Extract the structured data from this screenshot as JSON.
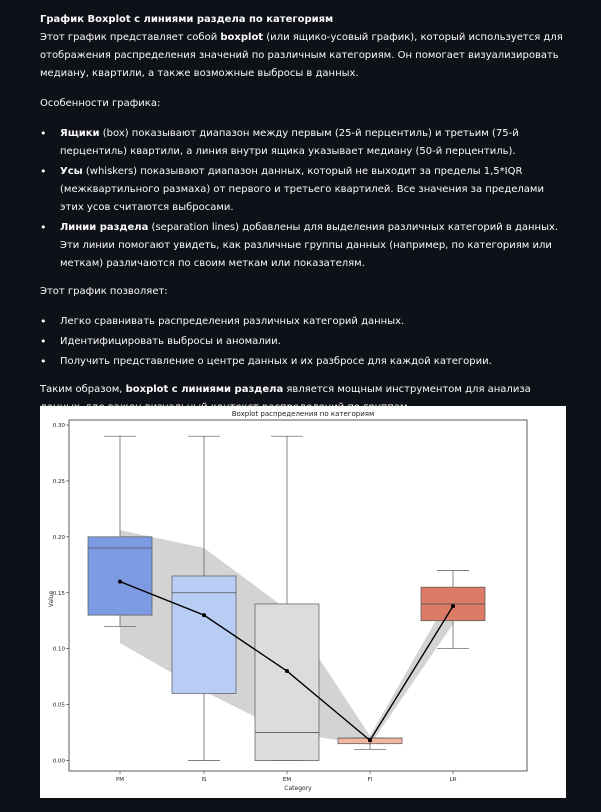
{
  "article": {
    "title": "График Boxplot с линиями раздела по категориям",
    "intro": {
      "part1": "Этот график представляет собой ",
      "bold1": "boxplot",
      "part2": " (или ящико-усовый график), который используется для отображения распределения значений по различным категориям. Он помогает визуализировать медиану, квартили, а также возможные выбросы в данных."
    },
    "features_heading": "Особенности графика:",
    "features": [
      {
        "bold": "Ящики",
        "text": " (box) показывают диапазон между первым (25-й перцентиль) и третьим (75-й перцентиль) квартили, а линия внутри ящика указывает медиану (50-й перцентиль)."
      },
      {
        "bold": "Усы",
        "text": " (whiskers) показывают диапазон данных, который не выходит за пределы 1,5*IQR (межквартильного размаха) от первого и третьего квартилей. Все значения за пределами этих усов считаются выбросами."
      },
      {
        "bold": "Линии раздела",
        "text": " (separation lines) добавлены для выделения различных категорий в данных. Эти линии помогают увидеть, как различные группы данных (например, по категориям или меткам) различаются по своим меткам или показателям."
      }
    ],
    "allows_heading": "Этот график позволяет:",
    "allows": [
      "Легко сравнивать распределения различных категорий данных.",
      "Идентифицировать выбросы и аномалии.",
      "Получить представление о центре данных и их разбросе для каждой категории."
    ],
    "conclusion": {
      "part1": "Таким образом, ",
      "bold1": "boxplot с линиями раздела",
      "part2": " является мощным инструментом для анализа данных, где важен визуальный контекст распределений по группам."
    }
  },
  "chart_data": {
    "type": "boxplot",
    "title": "Boxplot распределения по категориям",
    "xlabel": "Category",
    "ylabel": "Value",
    "ylim": [
      -0.01,
      0.3
    ],
    "yticks": [
      "0.00",
      "0.05",
      "0.10",
      "0.15",
      "0.20",
      "0.25",
      "0.30"
    ],
    "categories": [
      "PM",
      "IS",
      "EM",
      "FI",
      "LR"
    ],
    "colors": [
      "#7d9be3",
      "#b8cdf3",
      "#dcdcdc",
      "#f3b7a1",
      "#dc7b66"
    ],
    "boxes": [
      {
        "category": "PM",
        "whisker_low": 0.12,
        "q1": 0.13,
        "median": 0.19,
        "q3": 0.2,
        "whisker_high": 0.29
      },
      {
        "category": "IS",
        "whisker_low": 0.0,
        "q1": 0.06,
        "median": 0.15,
        "q3": 0.165,
        "whisker_high": 0.29
      },
      {
        "category": "EM",
        "whisker_low": 0.0,
        "q1": 0.0,
        "median": 0.025,
        "q3": 0.14,
        "whisker_high": 0.29
      },
      {
        "category": "FI",
        "whisker_low": 0.01,
        "q1": 0.015,
        "median": 0.02,
        "q3": 0.02,
        "whisker_high": 0.02
      },
      {
        "category": "LR",
        "whisker_low": 0.1,
        "q1": 0.125,
        "median": 0.14,
        "q3": 0.155,
        "whisker_high": 0.17
      }
    ],
    "line_values": [
      0.16,
      0.13,
      0.08,
      0.018,
      0.138
    ],
    "band_upper": [
      0.206,
      0.19,
      0.135,
      0.022,
      0.152
    ],
    "band_lower": [
      0.105,
      0.062,
      0.025,
      0.014,
      0.122
    ],
    "grid": false,
    "legend": "none"
  }
}
